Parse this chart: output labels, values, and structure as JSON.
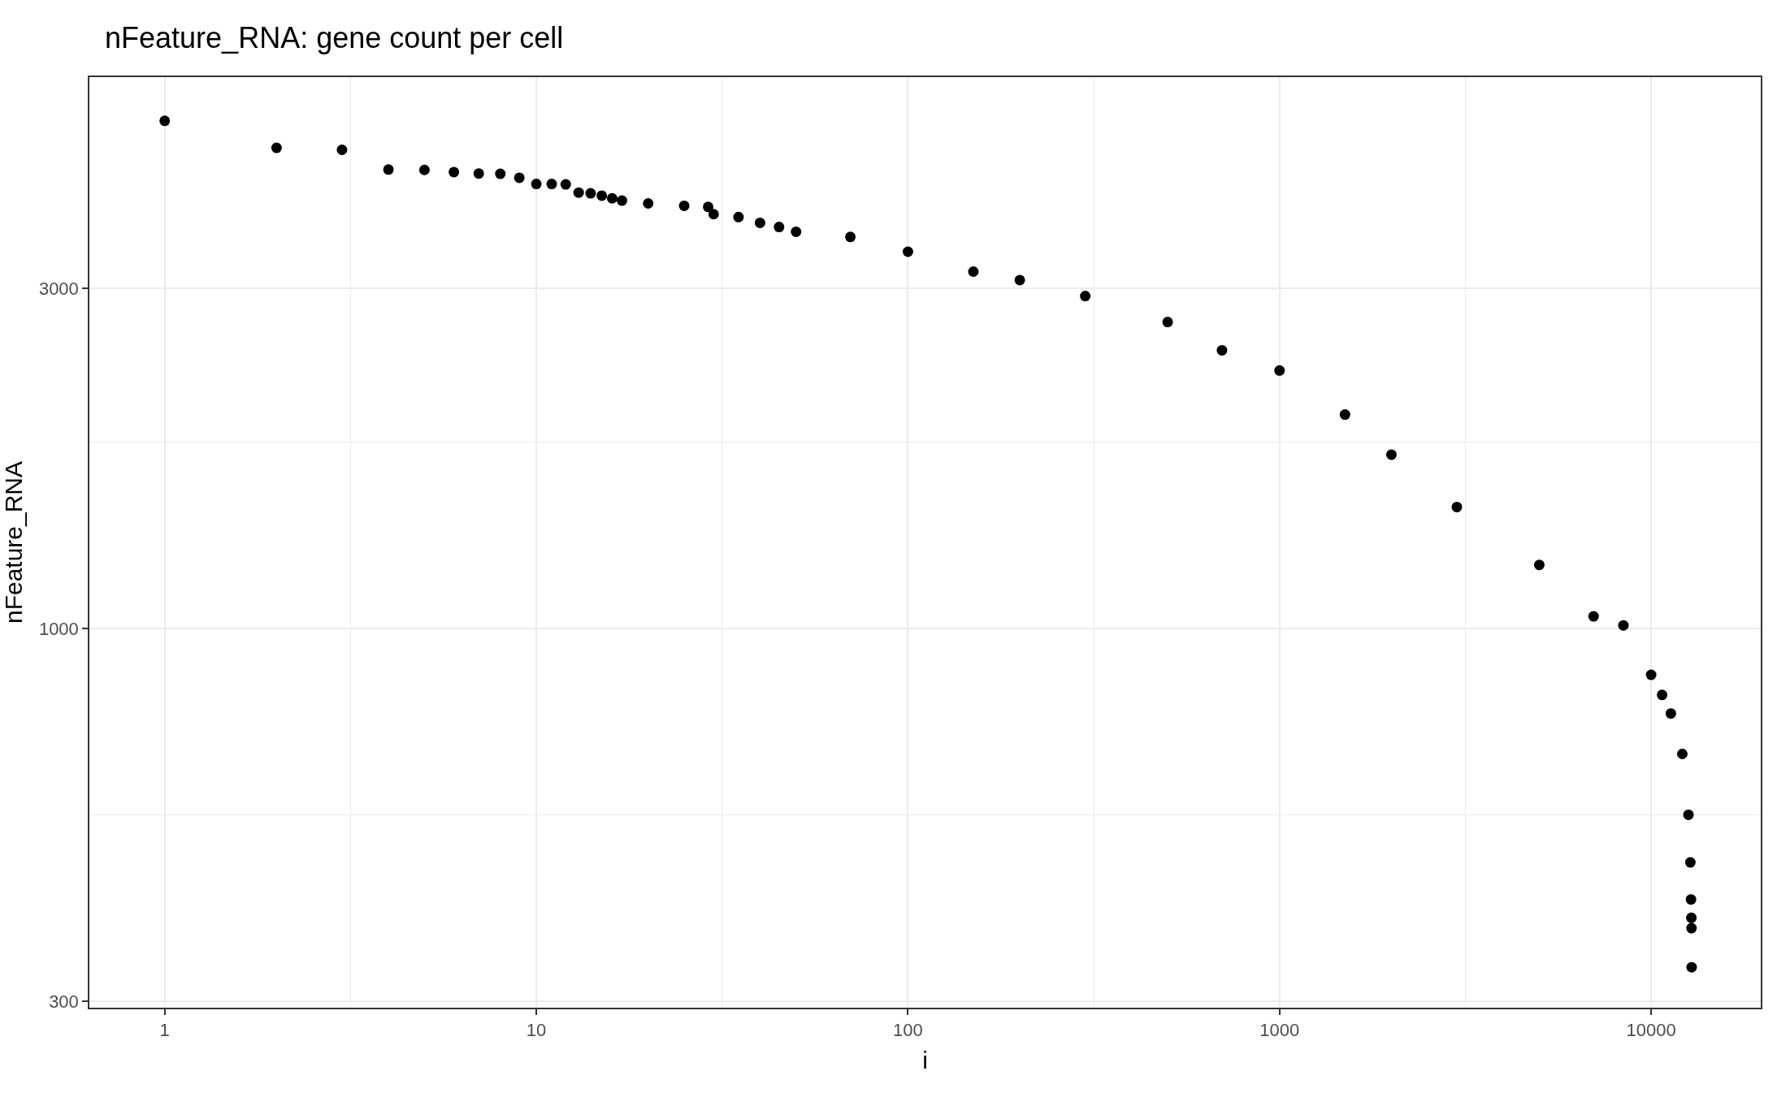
{
  "chart_data": {
    "type": "scatter",
    "title": "nFeature_RNA: gene count per cell",
    "xlabel": "i",
    "ylabel": "nFeature_RNA",
    "x": [
      1,
      2,
      3,
      4,
      5,
      6,
      7,
      8,
      9,
      10,
      11,
      12,
      13,
      14,
      15,
      16,
      17,
      20,
      25,
      29,
      30,
      35,
      40,
      45,
      50,
      70,
      100,
      150,
      200,
      300,
      500,
      700,
      1000,
      1500,
      2000,
      3000,
      5000,
      7000,
      8420,
      10000,
      10700,
      11300,
      12130,
      12600,
      12750,
      12800,
      12830,
      12840,
      12850
    ],
    "values": [
      5150,
      4720,
      4690,
      4400,
      4395,
      4365,
      4345,
      4340,
      4285,
      4200,
      4200,
      4195,
      4085,
      4075,
      4045,
      4010,
      3980,
      3945,
      3915,
      3900,
      3810,
      3775,
      3705,
      3655,
      3600,
      3540,
      3375,
      3165,
      3080,
      2925,
      2690,
      2455,
      2300,
      1995,
      1753,
      1480,
      1228,
      1040,
      1010,
      861,
      807,
      760,
      667,
      548,
      470,
      417,
      393,
      380,
      335
    ],
    "color": "#000000",
    "marker": "circle",
    "log": "xy",
    "grid": true,
    "xlim": [
      0.627,
      19720
    ],
    "ylim": [
      294,
      5930
    ],
    "xticks": [
      1,
      10,
      100,
      1000,
      10000
    ],
    "yticks": [
      300,
      1000,
      3000
    ]
  }
}
